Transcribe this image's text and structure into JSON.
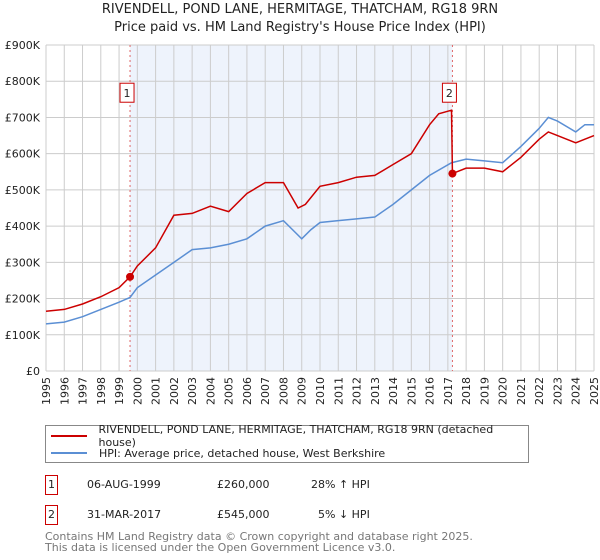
{
  "title": "RIVENDELL, POND LANE, HERMITAGE, THATCHAM, RG18 9RN",
  "subtitle": "Price paid vs. HM Land Registry's House Price Index (HPI)",
  "chart_data": {
    "type": "line",
    "title": "RIVENDELL, POND LANE, HERMITAGE, THATCHAM, RG18 9RN",
    "xlim": [
      1995,
      2025
    ],
    "ylim": [
      0,
      900000
    ],
    "y_ticks": [
      0,
      100000,
      200000,
      300000,
      400000,
      500000,
      600000,
      700000,
      800000,
      900000
    ],
    "y_tick_labels": [
      "£0",
      "£100K",
      "£200K",
      "£300K",
      "£400K",
      "£500K",
      "£600K",
      "£700K",
      "£800K",
      "£900K"
    ],
    "x_ticks": [
      1995,
      1996,
      1997,
      1998,
      1999,
      2000,
      2001,
      2002,
      2003,
      2004,
      2005,
      2006,
      2007,
      2008,
      2009,
      2010,
      2011,
      2012,
      2013,
      2014,
      2015,
      2016,
      2017,
      2018,
      2019,
      2020,
      2021,
      2022,
      2023,
      2024,
      2025
    ],
    "grid": true,
    "shaded_range": [
      1999.6,
      2017.25
    ],
    "series": [
      {
        "name": "RIVENDELL, POND LANE, HERMITAGE, THATCHAM, RG18 9RN (detached house)",
        "color": "#cc0000",
        "x": [
          1995,
          1996,
          1997,
          1998,
          1999,
          1999.6,
          2000,
          2001,
          2002,
          2003,
          2004,
          2005,
          2006,
          2007,
          2008,
          2008.8,
          2009.2,
          2010,
          2011,
          2012,
          2013,
          2014,
          2015,
          2016,
          2016.5,
          2017.2,
          2017.25,
          2018,
          2019,
          2020,
          2021,
          2022,
          2022.5,
          2023,
          2024,
          2025
        ],
        "y": [
          165000,
          170000,
          185000,
          205000,
          230000,
          260000,
          290000,
          340000,
          430000,
          435000,
          455000,
          440000,
          490000,
          520000,
          520000,
          450000,
          460000,
          510000,
          520000,
          535000,
          540000,
          570000,
          600000,
          680000,
          710000,
          720000,
          545000,
          560000,
          560000,
          550000,
          590000,
          640000,
          660000,
          650000,
          630000,
          650000
        ]
      },
      {
        "name": "HPI: Average price, detached house, West Berkshire",
        "color": "#5b8fd4",
        "x": [
          1995,
          1996,
          1997,
          1998,
          1999,
          1999.6,
          2000,
          2001,
          2002,
          2003,
          2004,
          2005,
          2006,
          2007,
          2008,
          2008.7,
          2009,
          2009.5,
          2010,
          2011,
          2012,
          2013,
          2014,
          2015,
          2016,
          2017.2,
          2018,
          2019,
          2020,
          2021,
          2022,
          2022.5,
          2023,
          2024,
          2024.5,
          2025
        ],
        "y": [
          130000,
          135000,
          150000,
          170000,
          190000,
          203000,
          230000,
          265000,
          300000,
          335000,
          340000,
          350000,
          365000,
          400000,
          415000,
          380000,
          365000,
          390000,
          410000,
          415000,
          420000,
          425000,
          460000,
          500000,
          540000,
          575000,
          585000,
          580000,
          575000,
          620000,
          670000,
          700000,
          690000,
          660000,
          680000,
          680000
        ]
      }
    ],
    "annotations": [
      {
        "label": "1",
        "x": 1999.6,
        "y": 260000
      },
      {
        "label": "2",
        "x": 2017.25,
        "y": 545000
      }
    ]
  },
  "legend": [
    {
      "label": "RIVENDELL, POND LANE, HERMITAGE, THATCHAM, RG18 9RN (detached house)",
      "color": "#cc0000"
    },
    {
      "label": "HPI: Average price, detached house, West Berkshire",
      "color": "#5b8fd4"
    }
  ],
  "transactions": [
    {
      "num": "1",
      "date": "06-AUG-1999",
      "price": "£260,000",
      "hpi": "28% ↑ HPI"
    },
    {
      "num": "2",
      "date": "31-MAR-2017",
      "price": "£545,000",
      "hpi": "5% ↓ HPI"
    }
  ],
  "footer": [
    "Contains HM Land Registry data © Crown copyright and database right 2025.",
    "This data is licensed under the Open Government Licence v3.0."
  ]
}
